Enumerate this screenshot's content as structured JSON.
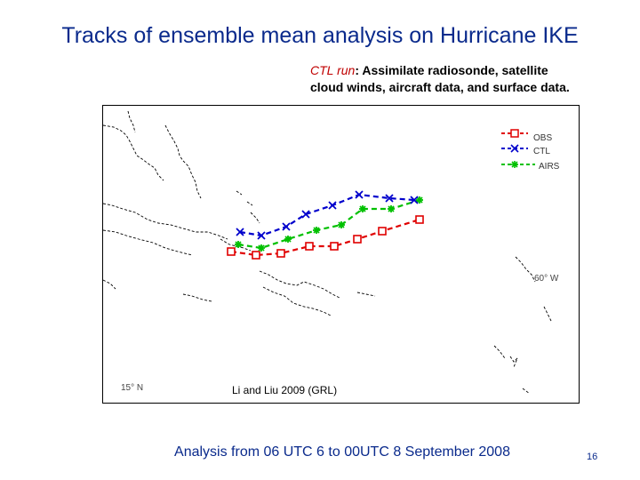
{
  "slide": {
    "title": "Tracks of ensemble mean analysis on Hurricane IKE",
    "subtitle_run": "CTL run",
    "subtitle_rest_line1": ": Assimilate radiosonde, satellite",
    "subtitle_line2": "cloud winds, aircraft data, and surface data.",
    "caption": "Analysis from 06 UTC 6 to 00UTC 8 September 2008",
    "page_number": "16"
  },
  "map": {
    "lon_label": "60° W",
    "lat_label": "15° N",
    "citation": "Li and Liu 2009 (GRL)",
    "coast_color": "#000000"
  },
  "tracks": {
    "legend": [
      {
        "name": "OBS",
        "color": "#e00000",
        "marker": "square"
      },
      {
        "name": "CTL",
        "color": "#0000cc",
        "marker": "x"
      },
      {
        "name": "AIRS",
        "color": "#00c000",
        "marker": "asterisk"
      }
    ]
  }
}
